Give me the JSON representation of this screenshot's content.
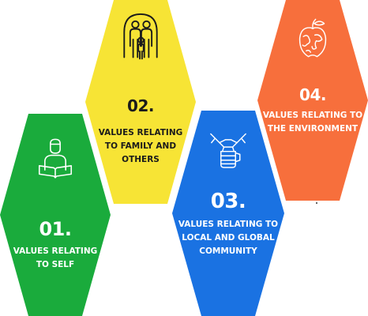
{
  "colors": {
    "green": "#1aab3c",
    "yellow": "#f7e435",
    "blue": "#1a72e2",
    "orange": "#f76f3c",
    "dark_text": "#1b1b1b",
    "light_text": "#ffffff"
  },
  "hexagons": [
    {
      "id": "self",
      "number": "01.",
      "label_lines": [
        "VALUES RELATING",
        "TO SELF"
      ],
      "icon": "reading-person-icon"
    },
    {
      "id": "family",
      "number": "02.",
      "label_lines": [
        "VALUES RELATING",
        "TO FAMILY AND",
        "OTHERS"
      ],
      "icon": "family-icon"
    },
    {
      "id": "community",
      "number": "03.",
      "label_lines": [
        "VALUES RELATING TO",
        "LOCAL AND GLOBAL",
        "COMMUNITY"
      ],
      "icon": "stacked-hands-icon"
    },
    {
      "id": "environment",
      "number": "04.",
      "label_lines": [
        "VALUES RELATING TO",
        "THE ENVIRONMENT"
      ],
      "icon": "globe-apple-icon"
    }
  ]
}
